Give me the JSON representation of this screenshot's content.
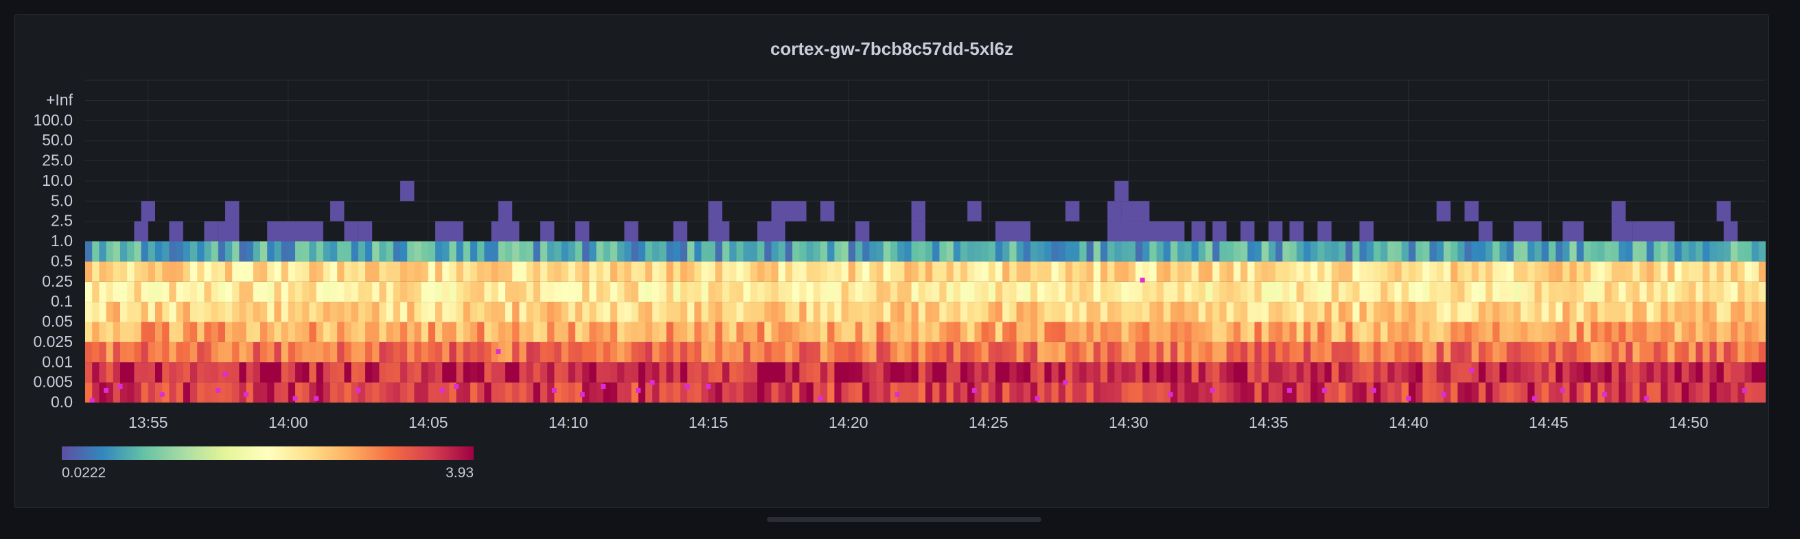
{
  "panel": {
    "title": "cortex-gw-7bcb8c57dd-5xl6z"
  },
  "chart_data": {
    "type": "heatmap",
    "title": "cortex-gw-7bcb8c57dd-5xl6z",
    "y_buckets": [
      "0.0",
      "0.005",
      "0.01",
      "0.025",
      "0.05",
      "0.1",
      "0.25",
      "0.5",
      "1.0",
      "2.5",
      "5.0",
      "10.0",
      "25.0",
      "50.0",
      "100.0",
      "+Inf"
    ],
    "x_ticks": [
      "13:55",
      "14:00",
      "14:05",
      "14:10",
      "14:15",
      "14:20",
      "14:25",
      "14:30",
      "14:35",
      "14:40",
      "14:45",
      "14:50"
    ],
    "x_range": [
      "13:52:45",
      "14:52:30"
    ],
    "interval_seconds": 15,
    "legend": {
      "min_label": "0.0222",
      "max_label": "3.93",
      "scheme": "Spectral",
      "colors": [
        "#5e4fa2",
        "#3288bd",
        "#66c2a5",
        "#abdda4",
        "#e6f598",
        "#ffffbf",
        "#fee08b",
        "#fdae61",
        "#f46d43",
        "#d53e4f",
        "#9e0142"
      ]
    },
    "band_levels": [
      {
        "bucket": "0.0",
        "typical": 2.3
      },
      {
        "bucket": "0.005",
        "typical": 2.7
      },
      {
        "bucket": "0.01",
        "typical": 1.4
      },
      {
        "bucket": "0.025",
        "typical": 0.85
      },
      {
        "bucket": "0.05",
        "typical": 0.55
      },
      {
        "bucket": "0.1",
        "typical": 0.4
      },
      {
        "bucket": "0.25",
        "typical": 0.48
      },
      {
        "bucket": "0.5",
        "typical": 0.05
      }
    ],
    "sparse_cells": [
      {
        "bucket": "1.0",
        "times": [
          "13:54:30",
          "13:55:45",
          "13:57",
          "13:57:30",
          "13:57:45",
          "13:59:15",
          "13:59:30",
          "13:59:45",
          "14:00",
          "14:00:15",
          "14:00:30",
          "14:00:45",
          "14:02",
          "14:02:30",
          "14:05:15",
          "14:05:30",
          "14:05:45",
          "14:07:15",
          "14:07:30",
          "14:07:45",
          "14:09",
          "14:10:15",
          "14:12",
          "14:13:45",
          "14:15",
          "14:15:15",
          "14:16:45",
          "14:17",
          "14:17:15",
          "14:20:15",
          "14:22:15",
          "14:25:15",
          "14:25:30",
          "14:25:45",
          "14:26",
          "14:29:15",
          "14:29:30",
          "14:29:45",
          "14:30:15",
          "14:30:30",
          "14:30:45",
          "14:31",
          "14:31:15",
          "14:31:30",
          "14:32:15",
          "14:33",
          "14:34",
          "14:35",
          "14:35:45",
          "14:36:45",
          "14:38:15",
          "14:42:30",
          "14:43:45",
          "14:44",
          "14:44:15",
          "14:45:30",
          "14:45:45",
          "14:47:15",
          "14:47:30",
          "14:48",
          "14:48:15",
          "14:48:30",
          "14:48:45",
          "14:49",
          "14:51:15"
        ]
      },
      {
        "bucket": "2.5",
        "times": [
          "13:54:45",
          "13:57:45",
          "14:01:30",
          "14:07:30",
          "14:15",
          "14:17:15",
          "14:17:30",
          "14:17:45",
          "14:18",
          "14:19",
          "14:22:15",
          "14:24:15",
          "14:27:45",
          "14:29:15",
          "14:29:45",
          "14:30:15",
          "14:41",
          "14:42",
          "14:47:15",
          "14:51"
        ]
      },
      {
        "bucket": "5.0",
        "times": [
          "14:04",
          "14:29:30"
        ]
      }
    ],
    "exemplars": [
      {
        "time": "13:53",
        "value": 0.0005
      },
      {
        "time": "13:53:30",
        "value": 0.003
      },
      {
        "time": "13:54",
        "value": 0.004
      },
      {
        "time": "13:55:30",
        "value": 0.002
      },
      {
        "time": "13:57:30",
        "value": 0.003
      },
      {
        "time": "13:57:45",
        "value": 0.007
      },
      {
        "time": "13:58:30",
        "value": 0.002
      },
      {
        "time": "14:00:15",
        "value": 0.001
      },
      {
        "time": "14:01",
        "value": 0.001
      },
      {
        "time": "14:02:30",
        "value": 0.003
      },
      {
        "time": "14:05:30",
        "value": 0.003
      },
      {
        "time": "14:06",
        "value": 0.004
      },
      {
        "time": "14:07:30",
        "value": 0.018
      },
      {
        "time": "14:09:30",
        "value": 0.003
      },
      {
        "time": "14:10:30",
        "value": 0.002
      },
      {
        "time": "14:11:15",
        "value": 0.004
      },
      {
        "time": "14:12:30",
        "value": 0.003
      },
      {
        "time": "14:13",
        "value": 0.005
      },
      {
        "time": "14:14:15",
        "value": 0.004
      },
      {
        "time": "14:15",
        "value": 0.004
      },
      {
        "time": "14:19",
        "value": 0.001
      },
      {
        "time": "14:21:45",
        "value": 0.002
      },
      {
        "time": "14:24:30",
        "value": 0.003
      },
      {
        "time": "14:26:45",
        "value": 0.001
      },
      {
        "time": "14:27:45",
        "value": 0.005
      },
      {
        "time": "14:30:30",
        "value": 0.27
      },
      {
        "time": "14:31:30",
        "value": 0.002
      },
      {
        "time": "14:33",
        "value": 0.003
      },
      {
        "time": "14:35:45",
        "value": 0.003
      },
      {
        "time": "14:37",
        "value": 0.003
      },
      {
        "time": "14:38:45",
        "value": 0.003
      },
      {
        "time": "14:40",
        "value": 0.001
      },
      {
        "time": "14:41:15",
        "value": 0.002
      },
      {
        "time": "14:42:15",
        "value": 0.008
      },
      {
        "time": "14:44:30",
        "value": 0.001
      },
      {
        "time": "14:45:30",
        "value": 0.003
      },
      {
        "time": "14:47",
        "value": 0.002
      },
      {
        "time": "14:48:30",
        "value": 0.001
      },
      {
        "time": "14:52",
        "value": 0.003
      }
    ],
    "exemplar_color": "#e02cd6",
    "grid": true,
    "legend_position": "bottom-left"
  }
}
